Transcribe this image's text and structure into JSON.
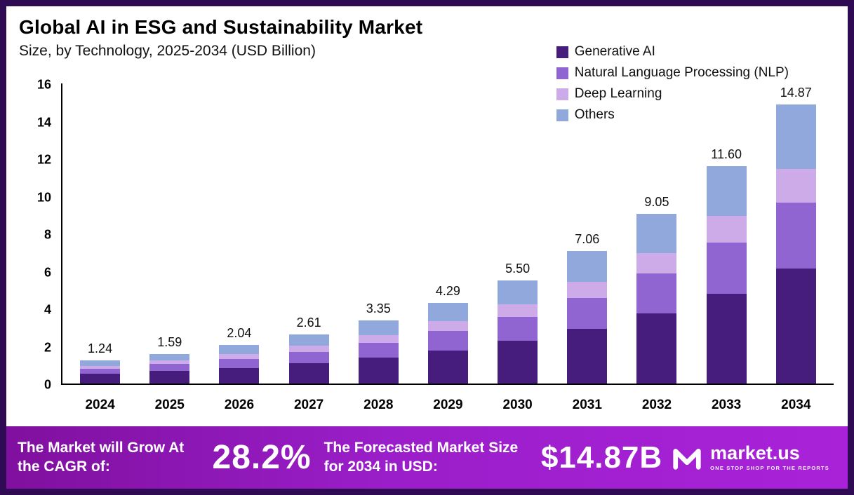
{
  "header": {
    "title": "Global AI in ESG and Sustainability Market",
    "subtitle": "Size, by Technology, 2025-2034 (USD Billion)"
  },
  "chart_data": {
    "type": "bar",
    "stacked": true,
    "title": "Global AI in ESG and Sustainability Market",
    "subtitle": "Size, by Technology, 2025-2034 (USD Billion)",
    "categories": [
      "2024",
      "2025",
      "2026",
      "2027",
      "2028",
      "2029",
      "2030",
      "2031",
      "2032",
      "2033",
      "2034"
    ],
    "totals": [
      1.24,
      1.59,
      2.04,
      2.61,
      3.35,
      4.29,
      5.5,
      7.06,
      9.05,
      11.6,
      14.87
    ],
    "series": [
      {
        "name": "Generative AI",
        "color": "#461c7c",
        "values": [
          0.51,
          0.66,
          0.84,
          1.08,
          1.38,
          1.77,
          2.27,
          2.91,
          3.73,
          4.78,
          6.13
        ]
      },
      {
        "name": "Natural Language Processing (NLP)",
        "color": "#9065d2",
        "values": [
          0.29,
          0.38,
          0.48,
          0.62,
          0.79,
          1.02,
          1.3,
          1.67,
          2.14,
          2.75,
          3.52
        ]
      },
      {
        "name": "Deep Learning",
        "color": "#cdabe9",
        "values": [
          0.15,
          0.19,
          0.25,
          0.32,
          0.41,
          0.52,
          0.67,
          0.85,
          1.1,
          1.4,
          1.8
        ]
      },
      {
        "name": "Others",
        "color": "#90a8dc",
        "values": [
          0.29,
          0.36,
          0.47,
          0.59,
          0.77,
          0.98,
          1.26,
          1.63,
          2.08,
          2.67,
          3.42
        ]
      }
    ],
    "xlabel": "",
    "ylabel": "",
    "ylim": [
      0,
      16
    ],
    "yticks": [
      0,
      2,
      4,
      6,
      8,
      10,
      12,
      14,
      16
    ],
    "grid": false,
    "legend_position": "top-right"
  },
  "footer": {
    "cagr_label": "The Market will Grow At the CAGR of:",
    "cagr_value": "28.2%",
    "forecast_label": "The Forecasted Market Size for 2034 in USD:",
    "forecast_value": "$14.87B",
    "brand": "market.us",
    "brand_tagline": "ONE STOP SHOP FOR THE REPORTS"
  }
}
